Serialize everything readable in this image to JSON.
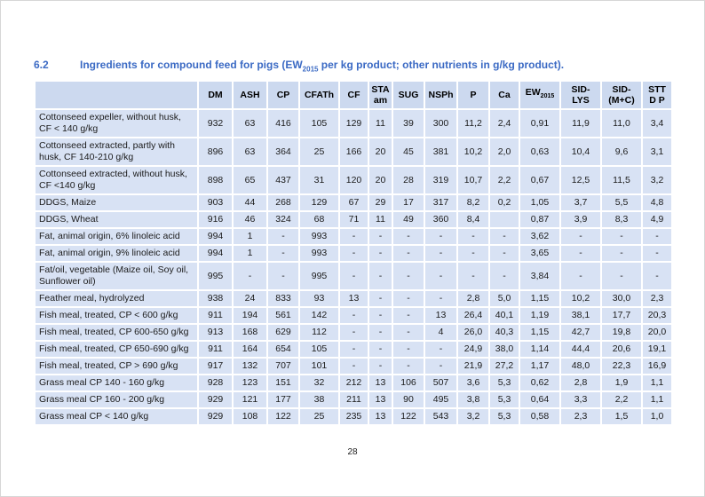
{
  "page": {
    "section_number": "6.2",
    "title_pre": "Ingredients for compound feed for pigs (EW",
    "title_sub": "2015",
    "title_post": " per kg product; other nutrients in g/kg product).",
    "page_number": "28"
  },
  "colors": {
    "title_blue": "#3b6ac4",
    "header_bg": "#ccd9ef",
    "cell_bg": "#d8e2f4"
  },
  "table": {
    "columns": [
      {
        "key": "ingredient",
        "label": ""
      },
      {
        "key": "dm",
        "label": "DM"
      },
      {
        "key": "ash",
        "label": "ASH"
      },
      {
        "key": "cp",
        "label": "CP"
      },
      {
        "key": "cfath",
        "label": "CFATh"
      },
      {
        "key": "cf",
        "label": "CF"
      },
      {
        "key": "sta-am",
        "line1": "STA",
        "line2": "am"
      },
      {
        "key": "sug",
        "label": "SUG"
      },
      {
        "key": "nsph",
        "label": "NSPh"
      },
      {
        "key": "p",
        "label": "P"
      },
      {
        "key": "ca",
        "label": "Ca"
      },
      {
        "key": "ew2015",
        "label": "EW",
        "sub": "2015"
      },
      {
        "key": "sid-lys",
        "line1": "SID-",
        "line2": "LYS"
      },
      {
        "key": "sid-mc",
        "line1": "SID-",
        "line2": "(M+C)"
      },
      {
        "key": "stt-dp",
        "line1": "STT",
        "line2": "D P"
      }
    ],
    "rows": [
      {
        "name": "Cottonseed expeller, without husk, CF < 140 g/kg",
        "values": [
          "932",
          "63",
          "416",
          "105",
          "129",
          "11",
          "39",
          "300",
          "11,2",
          "2,4",
          "0,91",
          "11,9",
          "11,0",
          "3,4"
        ]
      },
      {
        "name": "Cottonseed extracted, partly with husk, CF 140-210 g/kg",
        "values": [
          "896",
          "63",
          "364",
          "25",
          "166",
          "20",
          "45",
          "381",
          "10,2",
          "2,0",
          "0,63",
          "10,4",
          "9,6",
          "3,1"
        ]
      },
      {
        "name": "Cottonseed extracted, without husk, CF <140 g/kg",
        "values": [
          "898",
          "65",
          "437",
          "31",
          "120",
          "20",
          "28",
          "319",
          "10,7",
          "2,2",
          "0,67",
          "12,5",
          "11,5",
          "3,2"
        ]
      },
      {
        "name": "DDGS, Maize",
        "values": [
          "903",
          "44",
          "268",
          "129",
          "67",
          "29",
          "17",
          "317",
          "8,2",
          "0,2",
          "1,05",
          "3,7",
          "5,5",
          "4,8"
        ]
      },
      {
        "name": "DDGS, Wheat",
        "values": [
          "916",
          "46",
          "324",
          "68",
          "71",
          "11",
          "49",
          "360",
          "8,4",
          "",
          "0,87",
          "3,9",
          "8,3",
          "4,9"
        ]
      },
      {
        "name": "Fat, animal origin, 6% linoleic acid",
        "values": [
          "994",
          "1",
          "-",
          "993",
          "-",
          "-",
          "-",
          "-",
          "-",
          "-",
          "3,62",
          "-",
          "-",
          "-"
        ]
      },
      {
        "name": "Fat, animal origin, 9% linoleic acid",
        "values": [
          "994",
          "1",
          "-",
          "993",
          "-",
          "-",
          "-",
          "-",
          "-",
          "-",
          "3,65",
          "-",
          "-",
          "-"
        ]
      },
      {
        "name": "Fat/oil, vegetable (Maize oil, Soy oil, Sunflower oil)",
        "values": [
          "995",
          "-",
          "-",
          "995",
          "-",
          "-",
          "-",
          "-",
          "-",
          "-",
          "3,84",
          "-",
          "-",
          "-"
        ]
      },
      {
        "name": "Feather meal, hydrolyzed",
        "values": [
          "938",
          "24",
          "833",
          "93",
          "13",
          "-",
          "-",
          "-",
          "2,8",
          "5,0",
          "1,15",
          "10,2",
          "30,0",
          "2,3"
        ]
      },
      {
        "name": "Fish meal, treated, CP < 600 g/kg",
        "values": [
          "911",
          "194",
          "561",
          "142",
          "-",
          "-",
          "-",
          "13",
          "26,4",
          "40,1",
          "1,19",
          "38,1",
          "17,7",
          "20,3"
        ]
      },
      {
        "name": "Fish meal, treated, CP 600-650 g/kg",
        "values": [
          "913",
          "168",
          "629",
          "112",
          "-",
          "-",
          "-",
          "4",
          "26,0",
          "40,3",
          "1,15",
          "42,7",
          "19,8",
          "20,0"
        ]
      },
      {
        "name": "Fish meal, treated, CP 650-690 g/kg",
        "values": [
          "911",
          "164",
          "654",
          "105",
          "-",
          "-",
          "-",
          "-",
          "24,9",
          "38,0",
          "1,14",
          "44,4",
          "20,6",
          "19,1"
        ]
      },
      {
        "name": "Fish meal, treated, CP > 690 g/kg",
        "values": [
          "917",
          "132",
          "707",
          "101",
          "-",
          "-",
          "-",
          "-",
          "21,9",
          "27,2",
          "1,17",
          "48,0",
          "22,3",
          "16,9"
        ]
      },
      {
        "name": "Grass meal CP 140 - 160 g/kg",
        "values": [
          "928",
          "123",
          "151",
          "32",
          "212",
          "13",
          "106",
          "507",
          "3,6",
          "5,3",
          "0,62",
          "2,8",
          "1,9",
          "1,1"
        ]
      },
      {
        "name": "Grass meal CP 160 - 200 g/kg",
        "values": [
          "929",
          "121",
          "177",
          "38",
          "211",
          "13",
          "90",
          "495",
          "3,8",
          "5,3",
          "0,64",
          "3,3",
          "2,2",
          "1,1"
        ]
      },
      {
        "name": "Grass meal CP < 140 g/kg",
        "values": [
          "929",
          "108",
          "122",
          "25",
          "235",
          "13",
          "122",
          "543",
          "3,2",
          "5,3",
          "0,58",
          "2,3",
          "1,5",
          "1,0"
        ]
      }
    ]
  }
}
